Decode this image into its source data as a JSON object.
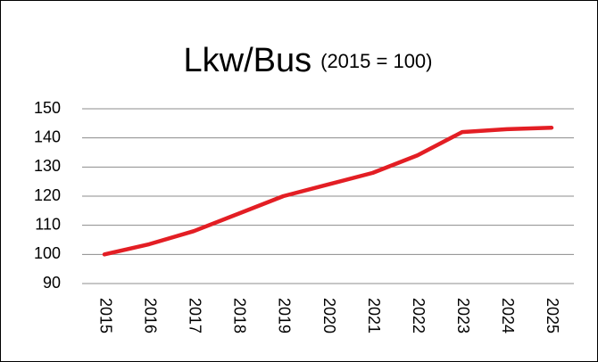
{
  "chart_data": {
    "type": "line",
    "title": "Lkw/Bus",
    "subtitle": "(2015 = 100)",
    "categories": [
      "2015",
      "2016",
      "2017",
      "2018",
      "2019",
      "2020",
      "2021",
      "2022",
      "2023",
      "2024",
      "2025"
    ],
    "values": [
      100,
      103.5,
      108,
      114,
      120,
      124,
      128,
      134,
      142,
      143,
      143.5
    ],
    "color": "#e31e24",
    "ylim": [
      90,
      150
    ],
    "yticks": [
      90,
      100,
      110,
      120,
      130,
      140,
      150
    ],
    "grid": true
  }
}
